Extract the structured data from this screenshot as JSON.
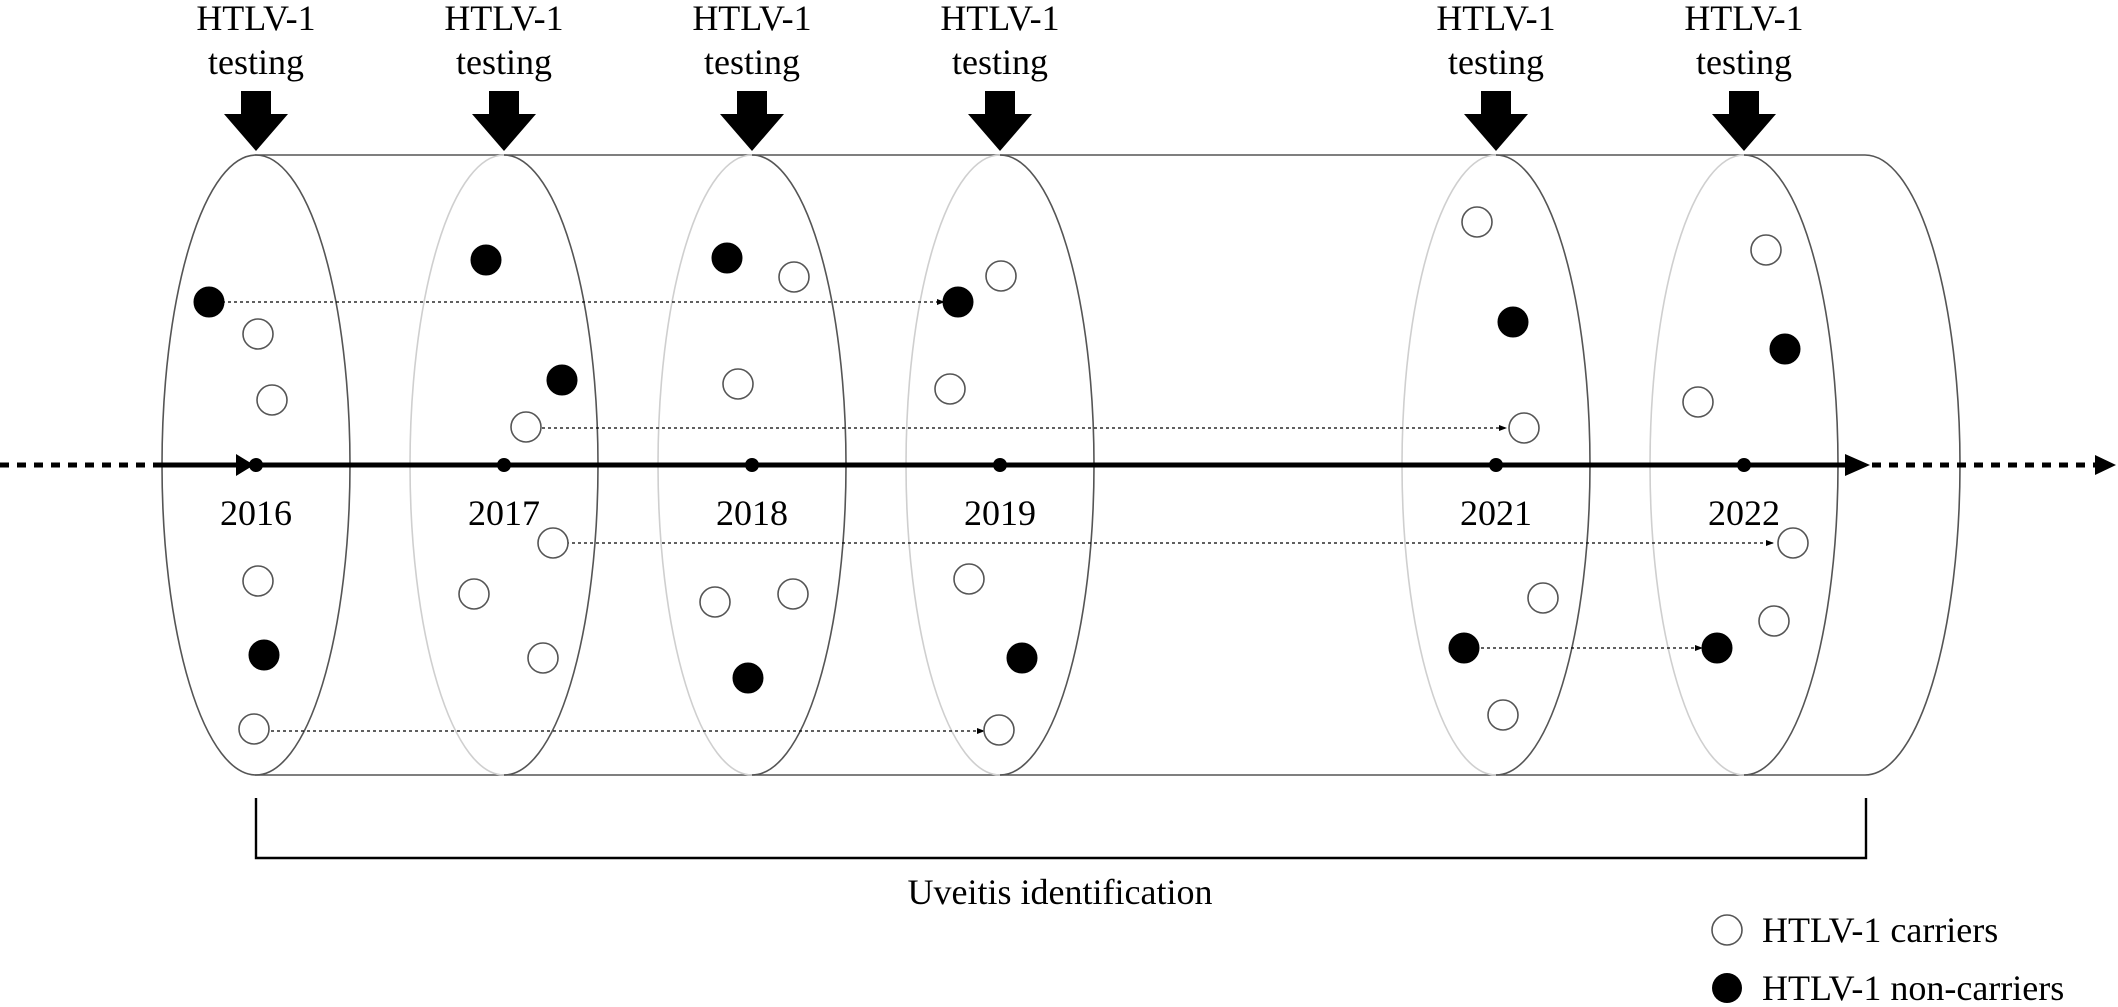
{
  "testing_label_line1": "HTLV-1",
  "testing_label_line2": "testing",
  "years": [
    "2016",
    "2017",
    "2018",
    "2019",
    "2021",
    "2022"
  ],
  "bracket_label": "Uveitis identification",
  "legend": {
    "carriers": "HTLV-1 carriers",
    "non_carriers": "HTLV-1 non-carriers"
  },
  "colors": {
    "line": "#000000",
    "cylinder_outline": "#555555",
    "faint_outline": "#cfcfcf",
    "non_carrier_fill": "#000000",
    "carrier_fill": "#ffffff"
  },
  "icons": {
    "testing_arrow": "down-arrow-icon",
    "carrier": "open-circle-icon",
    "non_carrier": "filled-circle-icon"
  }
}
